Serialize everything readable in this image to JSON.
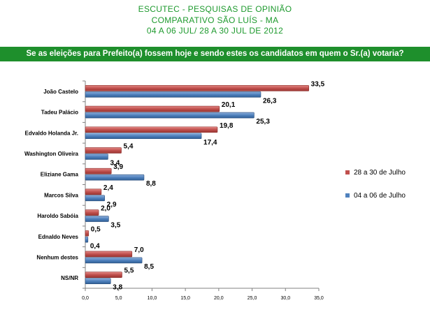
{
  "header": {
    "line1": "ESCUTEC - PESQUISAS DE OPINIÃO",
    "line2": "COMPARATIVO SÃO LUÍS - MA",
    "line3": "04 A 06 JUL/ 28 A 30 JUL DE 2012"
  },
  "question": "Se as eleições para Prefeito(a) fossem hoje e sendo estes os candidatos em quem o Sr.(a) votaria?",
  "colors": {
    "header_text": "#1e9a2e",
    "question_bar": "#1e8f2c",
    "series_red": "#c0504d",
    "series_blue": "#4f81bd"
  },
  "legend": {
    "item1": "28 a 30 de Julho",
    "item2": "04 a 06 de Julho"
  },
  "chart_data": {
    "type": "bar",
    "orientation": "horizontal",
    "categories": [
      "João Castelo",
      "Tadeu Palácio",
      "Edvaldo Holanda Jr.",
      "Washington Oliveira",
      "Eliziane Gama",
      "Marcos Silva",
      "Haroldo Sabóia",
      "Ednaldo Neves",
      "Nenhum destes",
      "NS/NR"
    ],
    "series": [
      {
        "name": "28 a 30 de Julho",
        "values": [
          33.5,
          20.1,
          19.8,
          5.4,
          3.9,
          2.4,
          2.0,
          0.5,
          7.0,
          5.5
        ],
        "labels": [
          "33,5",
          "20,1",
          "19,8",
          "5,4",
          "3,9",
          "2,4",
          "2,0",
          "0,5",
          "7,0",
          "5,5"
        ]
      },
      {
        "name": "04 a 06 de Julho",
        "values": [
          26.3,
          25.3,
          17.4,
          3.4,
          8.8,
          2.9,
          3.5,
          0.4,
          8.5,
          3.8
        ],
        "labels": [
          "26,3",
          "25,3",
          "17,4",
          "3,4",
          "8,8",
          "2,9",
          "3,5",
          "0,4",
          "8,5",
          "3,8"
        ]
      }
    ],
    "xlim": [
      0,
      35
    ],
    "xticks": [
      "0,0",
      "5,0",
      "10,0",
      "15,0",
      "20,0",
      "25,0",
      "30,0",
      "35,0"
    ],
    "legend_position": "right"
  }
}
